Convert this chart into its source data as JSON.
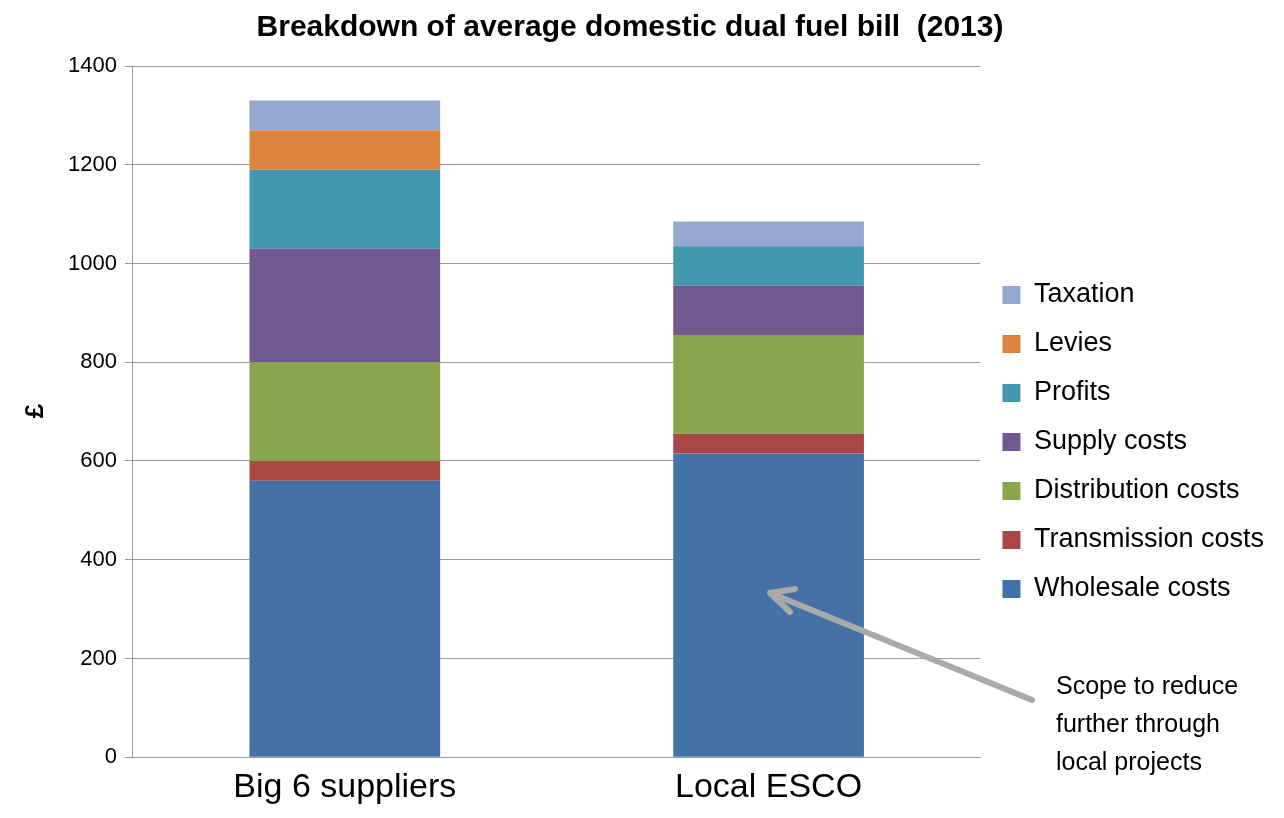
{
  "chart_data": {
    "type": "bar",
    "title": "Breakdown of average domestic dual fuel bill  (2013)",
    "ylabel": "£",
    "categories": [
      "Big 6 suppliers",
      "Local ESCO"
    ],
    "stacked": true,
    "legend": "right",
    "grid": "y",
    "ylim": [
      0,
      1400
    ],
    "yticks": [
      0,
      200,
      400,
      600,
      800,
      1000,
      1200,
      1400
    ],
    "series": [
      {
        "name": "Wholesale costs",
        "color": "#4472a8",
        "values": [
          560,
          615
        ]
      },
      {
        "name": "Transmission costs",
        "color": "#aa4644",
        "values": [
          40,
          40
        ]
      },
      {
        "name": "Distribution costs",
        "color": "#89a54e",
        "values": [
          200,
          200
        ]
      },
      {
        "name": "Supply costs",
        "color": "#71588f",
        "values": [
          230,
          100
        ]
      },
      {
        "name": "Profits",
        "color": "#4198af",
        "values": [
          160,
          80
        ]
      },
      {
        "name": "Levies",
        "color": "#db843d",
        "values": [
          80,
          0
        ]
      },
      {
        "name": "Taxation",
        "color": "#93a9cf",
        "values": [
          60,
          50
        ]
      }
    ],
    "annotations": [
      "Scope to reduce further through local projects"
    ]
  }
}
